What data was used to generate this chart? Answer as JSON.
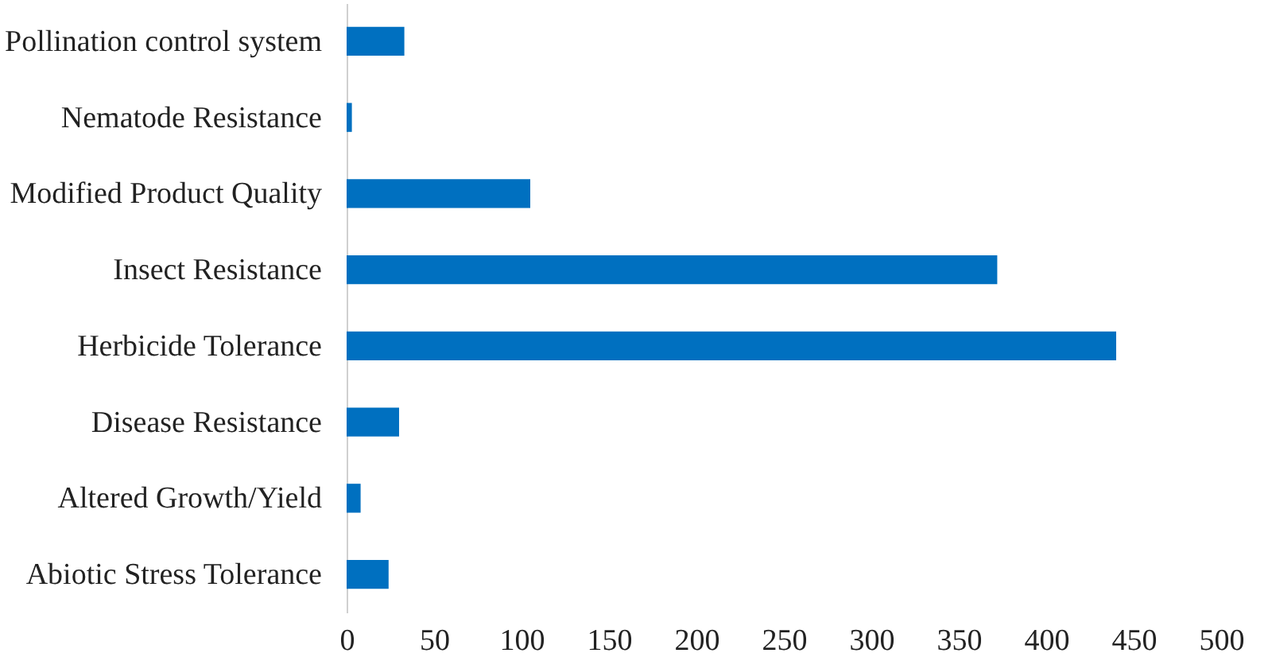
{
  "chart_data": {
    "type": "bar",
    "orientation": "horizontal",
    "categories": [
      "Pollination control system",
      "Nematode Resistance",
      "Modified Product Quality",
      "Insect Resistance",
      "Herbicide Tolerance",
      "Disease Resistance",
      "Altered Growth/Yield",
      "Abiotic Stress Tolerance"
    ],
    "values": [
      33,
      3,
      105,
      372,
      440,
      30,
      8,
      24
    ],
    "color": "#0070c0",
    "xlim": [
      0,
      500
    ],
    "xticks": [
      0,
      50,
      100,
      150,
      200,
      250,
      300,
      350,
      400,
      450,
      500
    ],
    "grid": false
  }
}
